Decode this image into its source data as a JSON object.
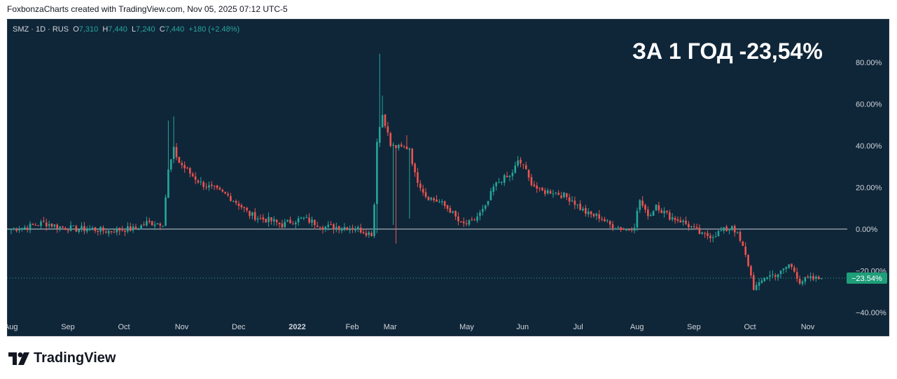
{
  "header": {
    "attribution": "FoxbonzaCharts created with TradingView.com, Nov 05, 2025 07:12 UTC-5"
  },
  "legend": {
    "symbol": "SMZ · 1D · RUS",
    "o_label": "O",
    "o_value": "7,310",
    "h_label": "H",
    "h_value": "7,440",
    "l_label": "L",
    "l_value": "7,240",
    "c_label": "C",
    "c_value": "7,440",
    "change": "+180 (+2.48%)"
  },
  "annotation": "ЗА 1 ГОД -23,54%",
  "footer": {
    "brand": "TradingView"
  },
  "colors": {
    "background": "#0f2638",
    "up": "#26a69a",
    "down": "#ef5350",
    "text": "#d1d4dc",
    "badge": "#1e9e79"
  },
  "chart_data": {
    "type": "candlestick",
    "y_unit": "percent change",
    "ylim": [
      -42,
      88
    ],
    "y_ticks": [
      "80.00%",
      "60.00%",
      "40.00%",
      "20.00%",
      "0.00%",
      "−20.00%",
      "−40.00%"
    ],
    "y_tick_values": [
      80,
      60,
      40,
      20,
      0,
      -20,
      -40
    ],
    "x_ticks": [
      "Aug",
      "Sep",
      "Oct",
      "Nov",
      "Dec",
      "2022",
      "Feb",
      "Mar",
      "May",
      "Jun",
      "Jul",
      "Aug",
      "Sep",
      "Oct",
      "Nov"
    ],
    "x_tick_bars": [
      0,
      21,
      42,
      63,
      84,
      105,
      126,
      140,
      168,
      189,
      210,
      231,
      252,
      273,
      294
    ],
    "zero_line": 0,
    "last_value": -23.54,
    "last_value_label": "−23.54%",
    "bar_count": 300,
    "anchors": [
      [
        0,
        0
      ],
      [
        6,
        1
      ],
      [
        12,
        3
      ],
      [
        18,
        1
      ],
      [
        24,
        0
      ],
      [
        30,
        0
      ],
      [
        36,
        -1
      ],
      [
        42,
        0
      ],
      [
        46,
        0
      ],
      [
        50,
        3
      ],
      [
        56,
        3
      ],
      [
        58,
        28
      ],
      [
        60,
        38
      ],
      [
        62,
        32
      ],
      [
        65,
        28
      ],
      [
        70,
        22
      ],
      [
        75,
        19
      ],
      [
        80,
        16
      ],
      [
        84,
        12
      ],
      [
        88,
        7
      ],
      [
        92,
        5
      ],
      [
        96,
        4
      ],
      [
        100,
        2
      ],
      [
        104,
        4
      ],
      [
        108,
        5
      ],
      [
        112,
        3
      ],
      [
        116,
        1
      ],
      [
        120,
        1
      ],
      [
        124,
        1
      ],
      [
        128,
        0
      ],
      [
        132,
        -2
      ],
      [
        133,
        -2
      ],
      [
        134,
        12
      ],
      [
        135,
        43
      ],
      [
        136,
        49
      ],
      [
        137,
        55
      ],
      [
        138,
        51
      ],
      [
        140,
        40
      ],
      [
        143,
        39
      ],
      [
        147,
        39
      ],
      [
        149,
        26
      ],
      [
        151,
        21
      ],
      [
        153,
        16
      ],
      [
        156,
        14
      ],
      [
        158,
        13
      ],
      [
        162,
        9
      ],
      [
        166,
        2
      ],
      [
        170,
        3
      ],
      [
        172,
        6
      ],
      [
        175,
        10
      ],
      [
        178,
        20
      ],
      [
        181,
        24
      ],
      [
        184,
        25
      ],
      [
        187,
        32
      ],
      [
        189,
        31
      ],
      [
        191,
        24
      ],
      [
        195,
        18
      ],
      [
        200,
        18
      ],
      [
        204,
        16
      ],
      [
        207,
        14
      ],
      [
        210,
        10
      ],
      [
        213,
        7
      ],
      [
        217,
        6
      ],
      [
        221,
        2
      ],
      [
        224,
        1
      ],
      [
        226,
        0
      ],
      [
        228,
        0
      ],
      [
        230,
        2
      ],
      [
        232,
        14
      ],
      [
        234,
        8
      ],
      [
        236,
        7
      ],
      [
        238,
        12
      ],
      [
        240,
        9
      ],
      [
        243,
        6
      ],
      [
        247,
        4
      ],
      [
        251,
        1
      ],
      [
        255,
        -3
      ],
      [
        259,
        -3
      ],
      [
        262,
        -1
      ],
      [
        265,
        0
      ],
      [
        266,
        2
      ],
      [
        268,
        -3
      ],
      [
        270,
        -9
      ],
      [
        272,
        -17
      ],
      [
        274,
        -28
      ],
      [
        276,
        -27
      ],
      [
        278,
        -23
      ],
      [
        281,
        -22
      ],
      [
        284,
        -21
      ],
      [
        287,
        -17
      ],
      [
        289,
        -20
      ],
      [
        291,
        -25
      ],
      [
        294,
        -24
      ],
      [
        297,
        -24
      ],
      [
        299,
        -23.54
      ]
    ]
  }
}
